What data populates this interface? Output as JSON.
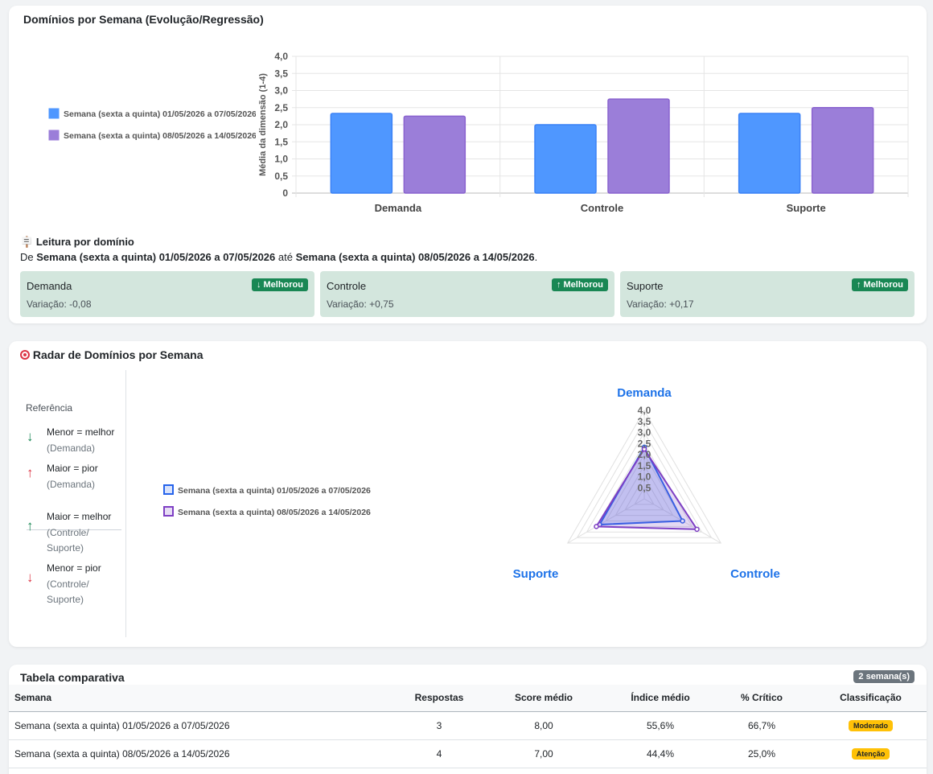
{
  "bar_card": {
    "title": "Domínios por Semana (Evolução/Regressão)",
    "legend": [
      {
        "label": "Semana (sexta a quinta) 01/05/2026 a 07/05/2026",
        "color": "#4f97ff"
      },
      {
        "label": "Semana (sexta a quinta) 08/05/2026 a 14/05/2026",
        "color": "#9b7ed9"
      }
    ],
    "reading_title": "Leitura por domínio",
    "reading_prefix": "De",
    "reading_from": "Semana (sexta a quinta) 01/05/2026 a 07/05/2026",
    "reading_mid": "até",
    "reading_to": "Semana (sexta a quinta) 08/05/2026 a 14/05/2026",
    "domains": [
      {
        "name": "Demanda",
        "badge": "↓ Melhorou",
        "variation": "Variação: -0,08"
      },
      {
        "name": "Controle",
        "badge": "↑ Melhorou",
        "variation": "Variação: +0,75"
      },
      {
        "name": "Suporte",
        "badge": "↑ Melhorou",
        "variation": "Variação: +0,17"
      }
    ]
  },
  "chart_data": [
    {
      "type": "bar",
      "categories": [
        "Demanda",
        "Controle",
        "Suporte"
      ],
      "series": [
        {
          "name": "Semana (sexta a quinta) 01/05/2026 a 07/05/2026",
          "values": [
            2.33,
            2.0,
            2.33
          ],
          "color": "#4f97ff"
        },
        {
          "name": "Semana (sexta a quinta) 08/05/2026 a 14/05/2026",
          "values": [
            2.25,
            2.75,
            2.5
          ],
          "color": "#9b7ed9"
        }
      ],
      "ylabel": "Média da dimensão (1-4)",
      "ylim": [
        0,
        4
      ],
      "yticks": [
        "0",
        "0,5",
        "1,0",
        "1,5",
        "2,0",
        "2,5",
        "3,0",
        "3,5",
        "4,0"
      ],
      "grid": true,
      "legend_position": "left"
    },
    {
      "type": "radar",
      "title": "Radar de Domínios por Semana",
      "axes": [
        "Demanda",
        "Controle",
        "Suporte"
      ],
      "series": [
        {
          "name": "Semana (sexta a quinta) 01/05/2026 a 07/05/2026",
          "values": [
            2.33,
            2.0,
            2.33
          ],
          "color": "#2563eb"
        },
        {
          "name": "Semana (sexta a quinta) 08/05/2026 a 14/05/2026",
          "values": [
            2.25,
            2.75,
            2.5
          ],
          "color": "#7e3fc4"
        }
      ],
      "rlim": [
        0,
        4
      ],
      "rticks": [
        "0,5",
        "1,0",
        "1,5",
        "2,0",
        "2,5",
        "3,0",
        "3,5",
        "4,0"
      ],
      "legend_position": "left"
    }
  ],
  "radar_card": {
    "title": "Radar de Domínios por Semana",
    "reference_title": "Referência",
    "reference": [
      {
        "main": "Menor = melhor",
        "sub": "(Demanda)",
        "arrow": "↓",
        "color": "#198754"
      },
      {
        "main": "Maior = pior",
        "sub": "(Demanda)",
        "arrow": "↑",
        "color": "#dc3545"
      },
      {
        "main": "Maior = melhor",
        "sub": "(Controle/ Suporte)",
        "arrow": "↑",
        "color": "#198754"
      },
      {
        "main": "Menor = pior",
        "sub": "(Controle/ Suporte)",
        "arrow": "↓",
        "color": "#dc3545"
      }
    ]
  },
  "table_card": {
    "title": "Tabela comparativa",
    "badge": "2 semana(s)",
    "headers": [
      "Semana",
      "Respostas",
      "Score médio",
      "Índice médio",
      "% Crítico",
      "Classificação"
    ],
    "rows": [
      {
        "semana": "Semana (sexta a quinta) 01/05/2026 a 07/05/2026",
        "respostas": "3",
        "score": "8,00",
        "indice": "55,6%",
        "critico": "66,7%",
        "classificacao": "Moderado"
      },
      {
        "semana": "Semana (sexta a quinta) 08/05/2026 a 14/05/2026",
        "respostas": "4",
        "score": "7,00",
        "indice": "44,4%",
        "critico": "25,0%",
        "classificacao": "Atenção"
      }
    ]
  }
}
